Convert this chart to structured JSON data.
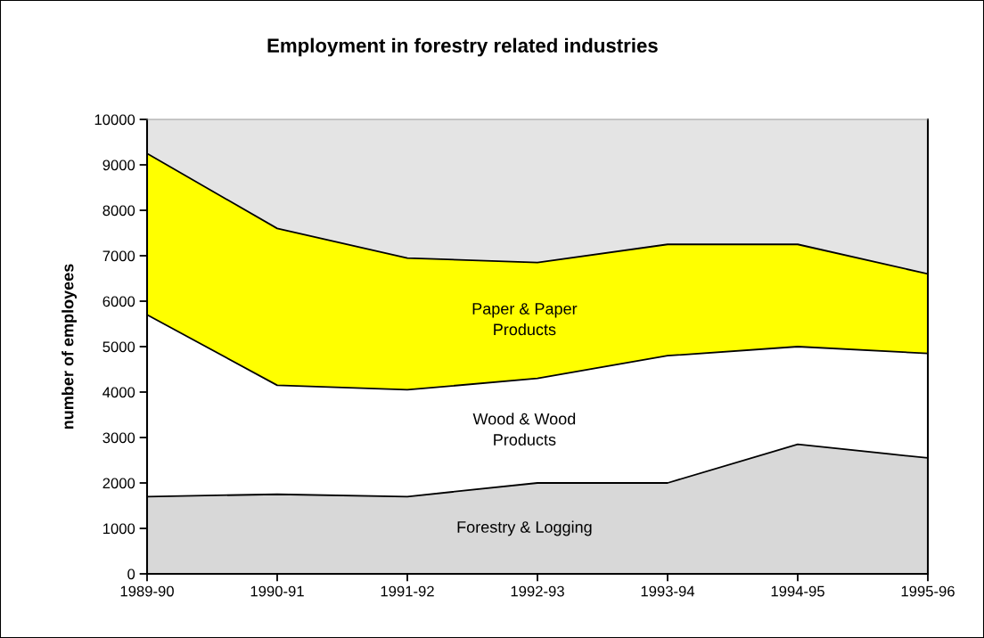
{
  "chart_data": {
    "type": "area",
    "title": "Employment in forestry related industries",
    "ylabel": "number of employees",
    "categories": [
      "1989-90",
      "1990-91",
      "1991-92",
      "1992-93",
      "1993-94",
      "1994-95",
      "1995-96"
    ],
    "stacked": true,
    "series": [
      {
        "name": "Forestry & Logging",
        "color": "#d8d8d8",
        "values": [
          1700,
          1750,
          1700,
          2000,
          2000,
          2850,
          2550
        ]
      },
      {
        "name": "Wood & Wood\nProducts",
        "color": "#ffffff",
        "values": [
          4000,
          2400,
          2350,
          2300,
          2800,
          2150,
          2300
        ]
      },
      {
        "name": "Paper & Paper\nProducts",
        "color": "#ffff00",
        "values": [
          3550,
          3450,
          2900,
          2550,
          2450,
          2250,
          1750
        ]
      }
    ],
    "ylim": [
      0,
      10000
    ],
    "yticks": [
      0,
      1000,
      2000,
      3000,
      4000,
      5000,
      6000,
      7000,
      8000,
      9000,
      10000
    ],
    "grid": false,
    "legend": false
  }
}
